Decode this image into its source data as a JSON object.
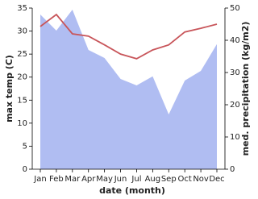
{
  "chart_data": {
    "type": "line-area",
    "categories": [
      "Jan",
      "Feb",
      "Mar",
      "Apr",
      "May",
      "Jun",
      "Jul",
      "Aug",
      "Sep",
      "Oct",
      "Nov",
      "Dec"
    ],
    "series": [
      {
        "kind": "area",
        "axis": "y2",
        "color": "#b0bdf2",
        "values": [
          48,
          43,
          49.5,
          37,
          34.5,
          28,
          26,
          28.8,
          17,
          27.5,
          30.5,
          38.8
        ]
      },
      {
        "kind": "line",
        "axis": "y",
        "color": "#c8555a",
        "values": [
          31.0,
          33.6,
          29.4,
          28.9,
          27.0,
          25.0,
          24.0,
          25.9,
          27.0,
          29.8,
          30.6,
          31.5
        ]
      }
    ],
    "ylim": [
      0,
      35
    ],
    "yticks": [
      0,
      5,
      10,
      15,
      20,
      25,
      30,
      35
    ],
    "y2lim": [
      0,
      50
    ],
    "y2ticks": [
      0,
      10,
      20,
      30,
      40,
      50
    ],
    "ylabel": "max temp (C)",
    "y2label": "med. precipitation (kg/m2)",
    "xlabel": "date (month)"
  }
}
